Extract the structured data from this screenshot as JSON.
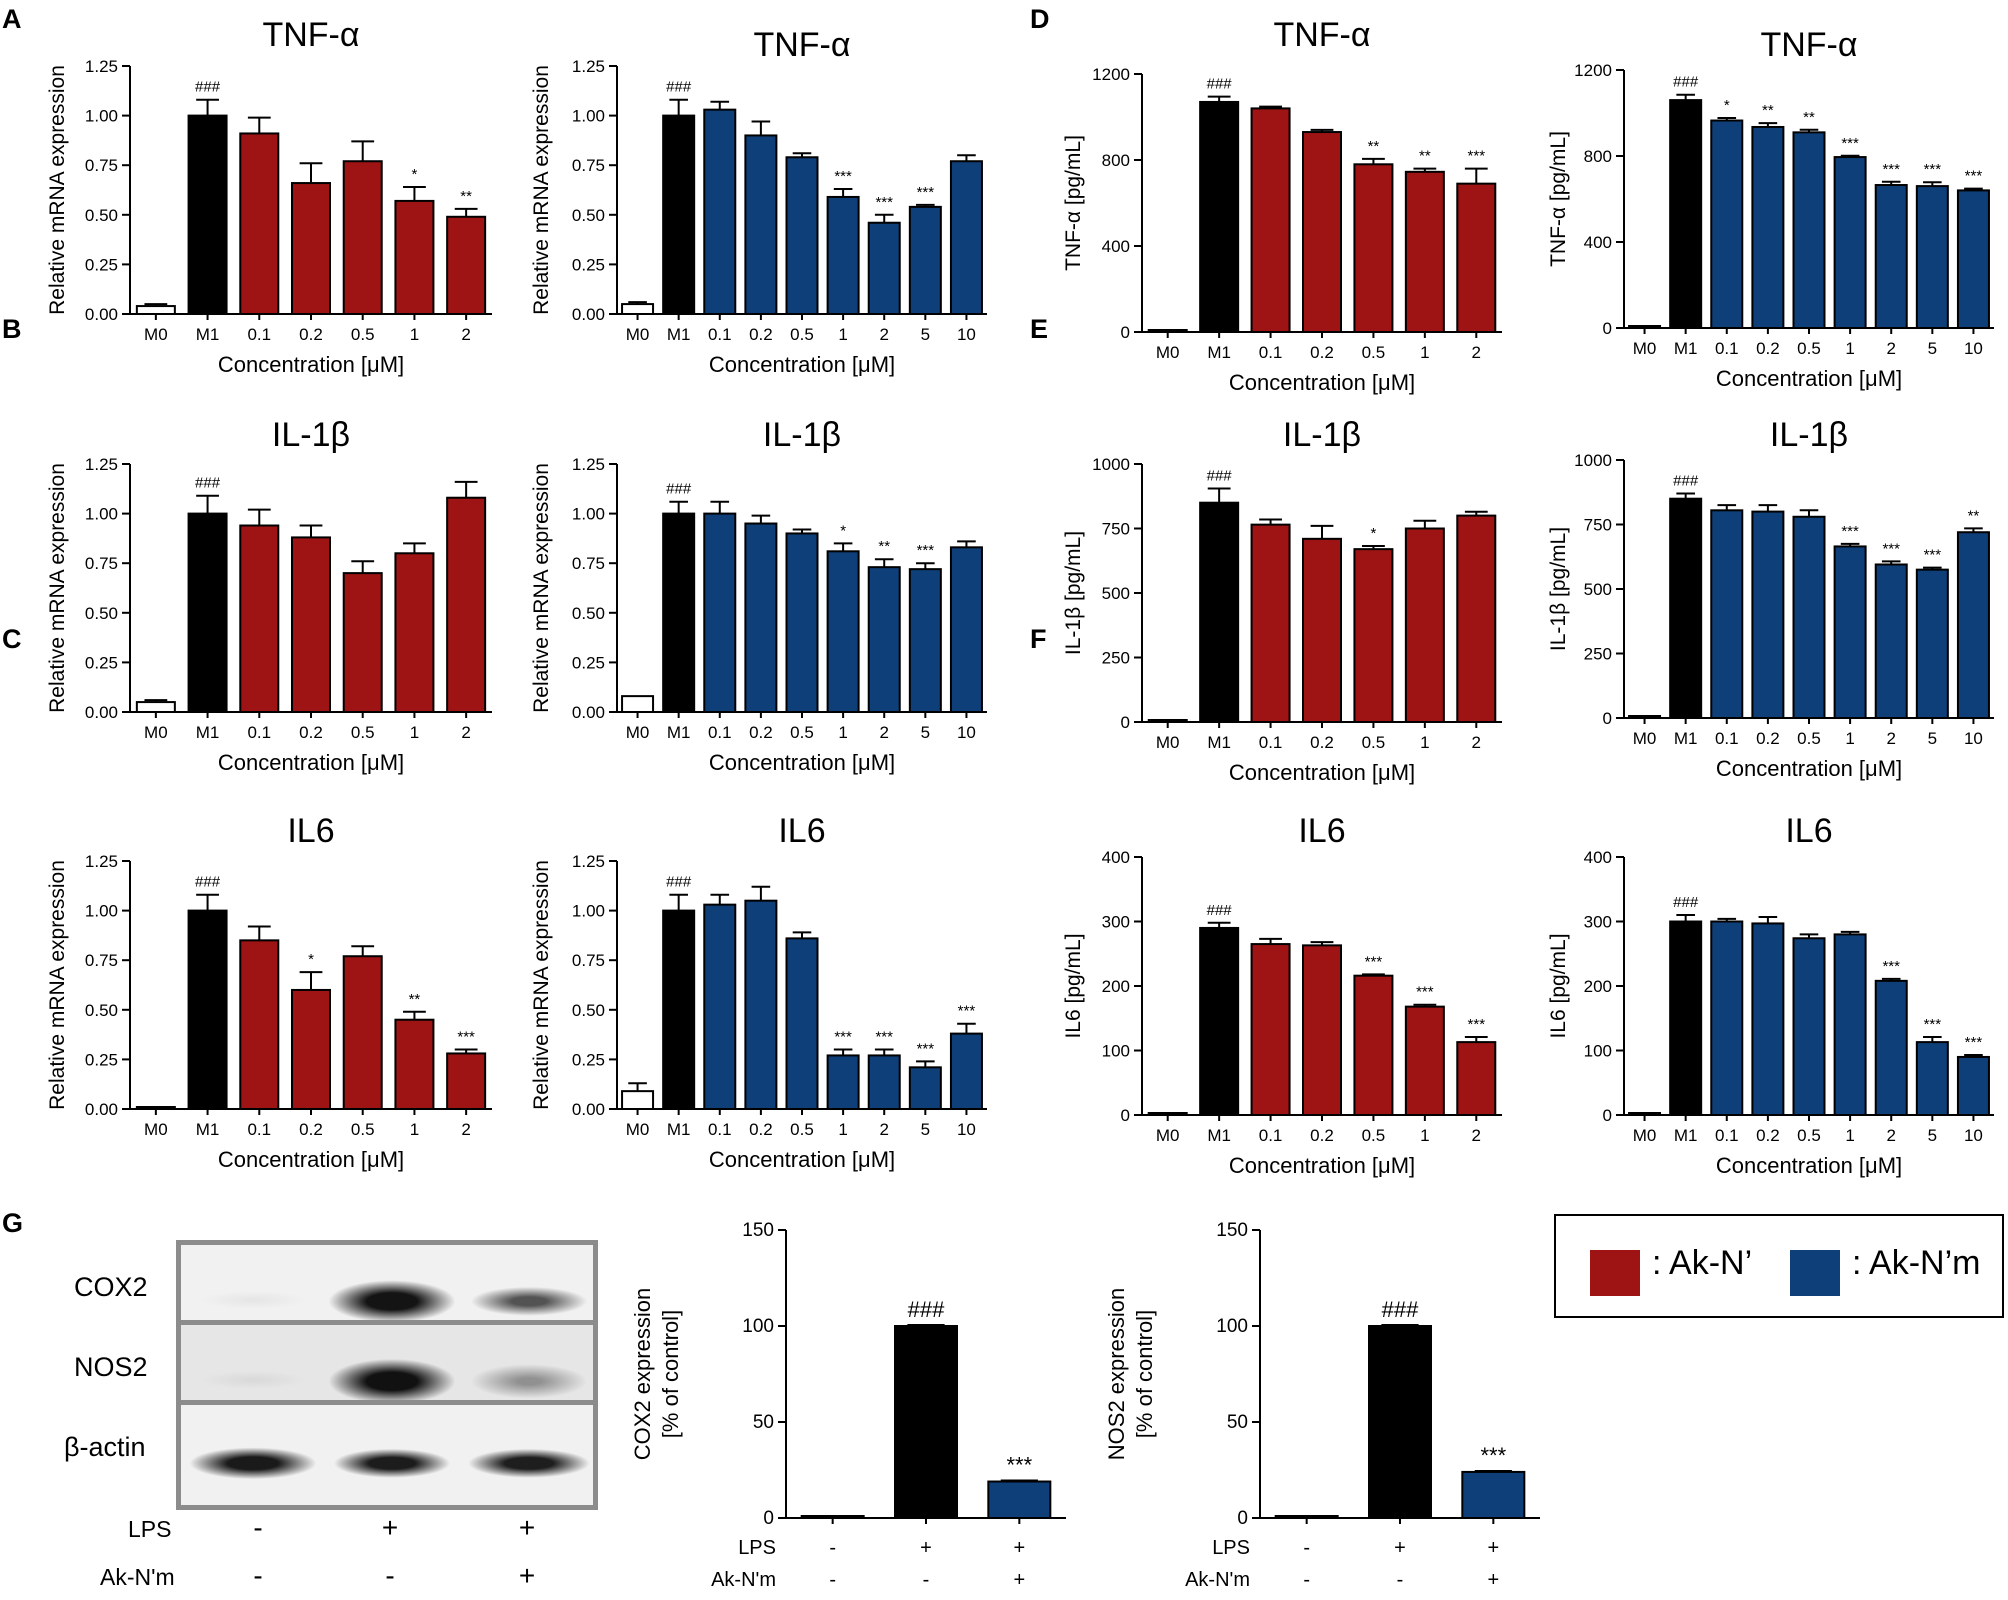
{
  "panel_letters": [
    "A",
    "B",
    "C",
    "D",
    "E",
    "F",
    "G"
  ],
  "colors": {
    "red": "#9e1414",
    "blue": "#0f3f78",
    "black": "#000000",
    "white": "#ffffff"
  },
  "chart_data": [
    {
      "id": "A1",
      "panel": "A",
      "type": "bar",
      "title": "TNF-α",
      "ylabel": "Relative mRNA expression",
      "xlabel": "Concentration [μM]",
      "ylim": [
        0,
        1.25
      ],
      "yticks": [
        "0.00",
        "0.25",
        "0.50",
        "0.75",
        "1.00",
        "1.25"
      ],
      "categories": [
        "M0",
        "M1",
        "0.1",
        "0.2",
        "0.5",
        "1",
        "2"
      ],
      "values": [
        0.04,
        1.0,
        0.91,
        0.66,
        0.77,
        0.57,
        0.49
      ],
      "errors": [
        0.01,
        0.08,
        0.08,
        0.1,
        0.1,
        0.07,
        0.04
      ],
      "colors": [
        "white",
        "black",
        "red",
        "red",
        "red",
        "red",
        "red"
      ],
      "annotations": [
        "",
        "###",
        "",
        "",
        "",
        "*",
        "**"
      ]
    },
    {
      "id": "A2",
      "panel": "A",
      "type": "bar",
      "title": "TNF-α",
      "ylabel": "Relative mRNA expression",
      "xlabel": "Concentration [μM]",
      "ylim": [
        0,
        1.25
      ],
      "yticks": [
        "0.00",
        "0.25",
        "0.50",
        "0.75",
        "1.00",
        "1.25"
      ],
      "categories": [
        "M0",
        "M1",
        "0.1",
        "0.2",
        "0.5",
        "1",
        "2",
        "5",
        "10"
      ],
      "values": [
        0.05,
        1.0,
        1.03,
        0.9,
        0.79,
        0.59,
        0.46,
        0.54,
        0.77
      ],
      "errors": [
        0.01,
        0.08,
        0.04,
        0.07,
        0.02,
        0.04,
        0.04,
        0.01,
        0.03
      ],
      "colors": [
        "white",
        "black",
        "blue",
        "blue",
        "blue",
        "blue",
        "blue",
        "blue",
        "blue"
      ],
      "annotations": [
        "",
        "###",
        "",
        "",
        "",
        "***",
        "***",
        "***",
        ""
      ]
    },
    {
      "id": "B1",
      "panel": "B",
      "type": "bar",
      "title": "IL-1β",
      "ylabel": "Relative mRNA expression",
      "xlabel": "Concentration [μM]",
      "ylim": [
        0,
        1.25
      ],
      "yticks": [
        "0.00",
        "0.25",
        "0.50",
        "0.75",
        "1.00",
        "1.25"
      ],
      "categories": [
        "M0",
        "M1",
        "0.1",
        "0.2",
        "0.5",
        "1",
        "2"
      ],
      "values": [
        0.05,
        1.0,
        0.94,
        0.88,
        0.7,
        0.8,
        1.08
      ],
      "errors": [
        0.01,
        0.09,
        0.08,
        0.06,
        0.06,
        0.05,
        0.08
      ],
      "colors": [
        "white",
        "black",
        "red",
        "red",
        "red",
        "red",
        "red"
      ],
      "annotations": [
        "",
        "###",
        "",
        "",
        "",
        "",
        ""
      ]
    },
    {
      "id": "B2",
      "panel": "B",
      "type": "bar",
      "title": "IL-1β",
      "ylabel": "Relative mRNA expression",
      "xlabel": "Concentration [μM]",
      "ylim": [
        0,
        1.25
      ],
      "yticks": [
        "0.00",
        "0.25",
        "0.50",
        "0.75",
        "1.00",
        "1.25"
      ],
      "categories": [
        "M0",
        "M1",
        "0.1",
        "0.2",
        "0.5",
        "1",
        "2",
        "5",
        "10"
      ],
      "values": [
        0.08,
        1.0,
        1.0,
        0.95,
        0.9,
        0.81,
        0.73,
        0.72,
        0.83
      ],
      "errors": [
        0.0,
        0.06,
        0.06,
        0.04,
        0.02,
        0.04,
        0.04,
        0.03,
        0.03
      ],
      "colors": [
        "white",
        "black",
        "blue",
        "blue",
        "blue",
        "blue",
        "blue",
        "blue",
        "blue"
      ],
      "annotations": [
        "",
        "###",
        "",
        "",
        "",
        "*",
        "**",
        "***",
        ""
      ]
    },
    {
      "id": "C1",
      "panel": "C",
      "type": "bar",
      "title": "IL6",
      "ylabel": "Relative mRNA expression",
      "xlabel": "Concentration [μM]",
      "ylim": [
        0,
        1.25
      ],
      "yticks": [
        "0.00",
        "0.25",
        "0.50",
        "0.75",
        "1.00",
        "1.25"
      ],
      "categories": [
        "M0",
        "M1",
        "0.1",
        "0.2",
        "0.5",
        "1",
        "2"
      ],
      "values": [
        0.0,
        1.0,
        0.85,
        0.6,
        0.77,
        0.45,
        0.28
      ],
      "errors": [
        0.0,
        0.08,
        0.07,
        0.09,
        0.05,
        0.04,
        0.02
      ],
      "colors": [
        "white",
        "black",
        "red",
        "red",
        "red",
        "red",
        "red"
      ],
      "annotations": [
        "",
        "###",
        "",
        "*",
        "",
        "**",
        "***"
      ]
    },
    {
      "id": "C2",
      "panel": "C",
      "type": "bar",
      "title": "IL6",
      "ylabel": "Relative mRNA expression",
      "xlabel": "Concentration [μM]",
      "ylim": [
        0,
        1.25
      ],
      "yticks": [
        "0.00",
        "0.25",
        "0.50",
        "0.75",
        "1.00",
        "1.25"
      ],
      "categories": [
        "M0",
        "M1",
        "0.1",
        "0.2",
        "0.5",
        "1",
        "2",
        "5",
        "10"
      ],
      "values": [
        0.09,
        1.0,
        1.03,
        1.05,
        0.86,
        0.27,
        0.27,
        0.21,
        0.38
      ],
      "errors": [
        0.04,
        0.08,
        0.05,
        0.07,
        0.03,
        0.03,
        0.03,
        0.03,
        0.05
      ],
      "colors": [
        "white",
        "black",
        "blue",
        "blue",
        "blue",
        "blue",
        "blue",
        "blue",
        "blue"
      ],
      "annotations": [
        "",
        "###",
        "",
        "",
        "",
        "***",
        "***",
        "***",
        "***"
      ]
    },
    {
      "id": "D1",
      "panel": "D",
      "type": "bar",
      "title": "TNF-α",
      "ylabel": "TNF-α [pg/mL]",
      "xlabel": "Concentration [μM]",
      "ylim": [
        0,
        1200
      ],
      "yticks": [
        "0",
        "400",
        "800",
        "1200"
      ],
      "categories": [
        "M0",
        "M1",
        "0.1",
        "0.2",
        "0.5",
        "1",
        "2"
      ],
      "values": [
        2,
        1070,
        1040,
        930,
        780,
        745,
        690
      ],
      "errors": [
        0,
        25,
        8,
        10,
        25,
        15,
        70
      ],
      "colors": [
        "white",
        "black",
        "red",
        "red",
        "red",
        "red",
        "red"
      ],
      "annotations": [
        "",
        "###",
        "",
        "",
        "**",
        "**",
        "***"
      ]
    },
    {
      "id": "D2",
      "panel": "D",
      "type": "bar",
      "title": "TNF-α",
      "ylabel": "TNF-α [pg/mL]",
      "xlabel": "Concentration [μM]",
      "ylim": [
        0,
        1200
      ],
      "yticks": [
        "0",
        "400",
        "800",
        "1200"
      ],
      "categories": [
        "M0",
        "M1",
        "0.1",
        "0.2",
        "0.5",
        "1",
        "2",
        "5",
        "10"
      ],
      "values": [
        2,
        1060,
        965,
        935,
        910,
        795,
        665,
        660,
        640
      ],
      "errors": [
        0,
        25,
        12,
        18,
        12,
        6,
        15,
        18,
        8
      ],
      "colors": [
        "white",
        "black",
        "blue",
        "blue",
        "blue",
        "blue",
        "blue",
        "blue",
        "blue"
      ],
      "annotations": [
        "",
        "###",
        "*",
        "**",
        "**",
        "***",
        "***",
        "***",
        "***"
      ]
    },
    {
      "id": "E1",
      "panel": "E",
      "type": "bar",
      "title": "IL-1β",
      "ylabel": "IL-1β [pg/mL]",
      "xlabel": "Concentration [μM]",
      "ylim": [
        0,
        1000
      ],
      "yticks": [
        "0",
        "250",
        "500",
        "750",
        "1000"
      ],
      "categories": [
        "M0",
        "M1",
        "0.1",
        "0.2",
        "0.5",
        "1",
        "2"
      ],
      "values": [
        2,
        850,
        765,
        710,
        670,
        750,
        800
      ],
      "errors": [
        0,
        55,
        20,
        50,
        12,
        30,
        15
      ],
      "colors": [
        "white",
        "black",
        "red",
        "red",
        "red",
        "red",
        "red"
      ],
      "annotations": [
        "",
        "###",
        "",
        "",
        "*",
        "",
        ""
      ]
    },
    {
      "id": "E2",
      "panel": "E",
      "type": "bar",
      "title": "IL-1β",
      "ylabel": "IL-1β [pg/mL]",
      "xlabel": "Concentration [μM]",
      "ylim": [
        0,
        1000
      ],
      "yticks": [
        "0",
        "250",
        "500",
        "750",
        "1000"
      ],
      "categories": [
        "M0",
        "M1",
        "0.1",
        "0.2",
        "0.5",
        "1",
        "2",
        "5",
        "10"
      ],
      "values": [
        2,
        850,
        805,
        800,
        780,
        665,
        595,
        575,
        720
      ],
      "errors": [
        0,
        20,
        20,
        25,
        25,
        10,
        12,
        8,
        15
      ],
      "colors": [
        "white",
        "black",
        "blue",
        "blue",
        "blue",
        "blue",
        "blue",
        "blue",
        "blue"
      ],
      "annotations": [
        "",
        "###",
        "",
        "",
        "",
        "***",
        "***",
        "***",
        "**"
      ]
    },
    {
      "id": "F1",
      "panel": "F",
      "type": "bar",
      "title": "IL6",
      "ylabel": "IL6 [pg/mL]",
      "xlabel": "Concentration [μM]",
      "ylim": [
        0,
        400
      ],
      "yticks": [
        "0",
        "100",
        "200",
        "300",
        "400"
      ],
      "categories": [
        "M0",
        "M1",
        "0.1",
        "0.2",
        "0.5",
        "1",
        "2"
      ],
      "values": [
        2,
        290,
        265,
        263,
        216,
        168,
        113
      ],
      "errors": [
        0,
        8,
        8,
        5,
        2,
        3,
        8
      ],
      "colors": [
        "white",
        "black",
        "red",
        "red",
        "red",
        "red",
        "red"
      ],
      "annotations": [
        "",
        "###",
        "",
        "",
        "***",
        "***",
        "***"
      ]
    },
    {
      "id": "F2",
      "panel": "F",
      "type": "bar",
      "title": "IL6",
      "ylabel": "IL6 [pg/mL]",
      "xlabel": "Concentration [μM]",
      "ylim": [
        0,
        400
      ],
      "yticks": [
        "0",
        "100",
        "200",
        "300",
        "400"
      ],
      "categories": [
        "M0",
        "M1",
        "0.1",
        "0.2",
        "0.5",
        "1",
        "2",
        "5",
        "10"
      ],
      "values": [
        0,
        300,
        300,
        297,
        274,
        280,
        208,
        113,
        90
      ],
      "errors": [
        0,
        10,
        4,
        10,
        6,
        4,
        3,
        8,
        3
      ],
      "colors": [
        "white",
        "black",
        "blue",
        "blue",
        "blue",
        "blue",
        "blue",
        "blue",
        "blue"
      ],
      "annotations": [
        "",
        "###",
        "",
        "",
        "",
        "",
        "***",
        "***",
        "***"
      ]
    },
    {
      "id": "G1",
      "panel": "G",
      "type": "bar",
      "title": "",
      "ylabel": "COX2 expression\n[% of control]",
      "xlabel": "",
      "ylim": [
        0,
        150
      ],
      "yticks": [
        "0",
        "50",
        "100",
        "150"
      ],
      "categories": [
        "",
        "",
        ""
      ],
      "values": [
        0,
        100,
        19
      ],
      "errors": [
        0,
        0.5,
        0.5
      ],
      "colors": [
        "white",
        "black",
        "blue"
      ],
      "annotations": [
        "",
        "###",
        "***"
      ],
      "rows": [
        {
          "label": "LPS",
          "signs": [
            "-",
            "+",
            "+"
          ]
        },
        {
          "label": "Ak-N'm",
          "signs": [
            "-",
            "-",
            "+"
          ]
        }
      ]
    },
    {
      "id": "G2",
      "panel": "G",
      "type": "bar",
      "title": "",
      "ylabel": "NOS2 expression\n[% of control]",
      "xlabel": "",
      "ylim": [
        0,
        150
      ],
      "yticks": [
        "0",
        "50",
        "100",
        "150"
      ],
      "categories": [
        "",
        "",
        ""
      ],
      "values": [
        1,
        100,
        24
      ],
      "errors": [
        0,
        0.5,
        0.5
      ],
      "colors": [
        "white",
        "black",
        "blue"
      ],
      "annotations": [
        "",
        "###",
        "***"
      ],
      "rows": [
        {
          "label": "LPS",
          "signs": [
            "-",
            "+",
            "+"
          ]
        },
        {
          "label": "Ak-N'm",
          "signs": [
            "-",
            "-",
            "+"
          ]
        }
      ]
    }
  ],
  "blot": {
    "proteins": [
      "COX2",
      "NOS2",
      "β-actin"
    ],
    "rows": [
      {
        "label": "LPS",
        "signs": [
          "-",
          "+",
          "+"
        ]
      },
      {
        "label": "Ak-N'm",
        "signs": [
          "-",
          "-",
          "+"
        ]
      }
    ]
  },
  "legend": [
    {
      "label": ": Ak-N’",
      "color": "#9e1414"
    },
    {
      "label": ": Ak-N’m",
      "color": "#0f3f78"
    }
  ]
}
